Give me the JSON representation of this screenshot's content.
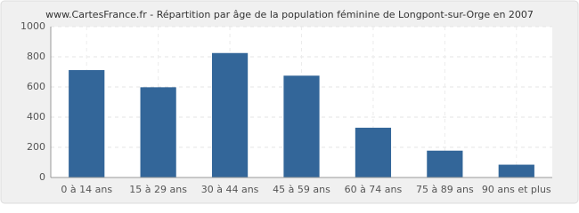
{
  "chart_data": {
    "type": "bar",
    "title": "www.CartesFrance.fr - Répartition par âge de la population féminine de Longpont-sur-Orge en 2007",
    "categories": [
      "0 à 14 ans",
      "15 à 29 ans",
      "30 à 44 ans",
      "45 à 59 ans",
      "60 à 74 ans",
      "75 à 89 ans",
      "90 ans et plus"
    ],
    "values": [
      712,
      598,
      825,
      675,
      330,
      178,
      85
    ],
    "color": "#336699",
    "ylim": [
      0,
      1000
    ],
    "yticks": [
      0,
      200,
      400,
      600,
      800,
      1000
    ],
    "grid": true
  }
}
